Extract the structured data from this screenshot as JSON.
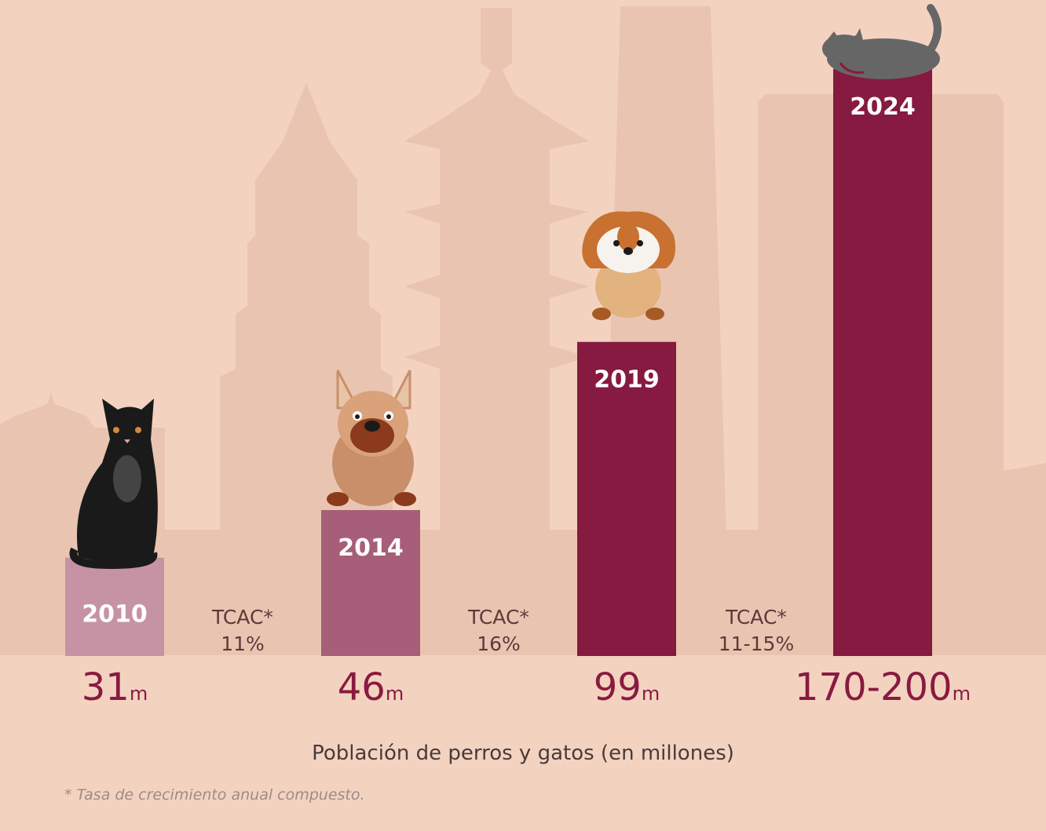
{
  "colors": {
    "background": "#f3d3c0",
    "skyline": "#e9c5b1",
    "bar_2010": "#c693a5",
    "bar_2014": "#a75e78",
    "bar_recent": "#861a40",
    "value_text": "#8a1a40"
  },
  "chart_data": {
    "type": "bar",
    "categories": [
      "2010",
      "2014",
      "2019",
      "2024"
    ],
    "values": [
      31,
      46,
      99,
      185
    ],
    "value_labels": [
      "31",
      "46",
      "99",
      "170-200"
    ],
    "value_unit": "m",
    "bar_colors": [
      "#c693a5",
      "#a75e78",
      "#861a40",
      "#861a40"
    ],
    "growth_labels": [
      {
        "label": "TCAC*",
        "rate": "11%"
      },
      {
        "label": "TCAC*",
        "rate": "16%"
      },
      {
        "label": "TCAC*",
        "rate": "11-15%"
      }
    ],
    "icons": [
      "black-cat-icon",
      "french-bulldog-icon",
      "shih-tzu-icon",
      "sleeping-gray-cat-icon"
    ],
    "xlabel": "Población de perros y gatos (en millones)",
    "ylabel": "",
    "ylim": [
      0,
      185
    ],
    "grid": false,
    "legend": "none"
  },
  "footnote": "* Tasa de crecimiento anual compuesto."
}
